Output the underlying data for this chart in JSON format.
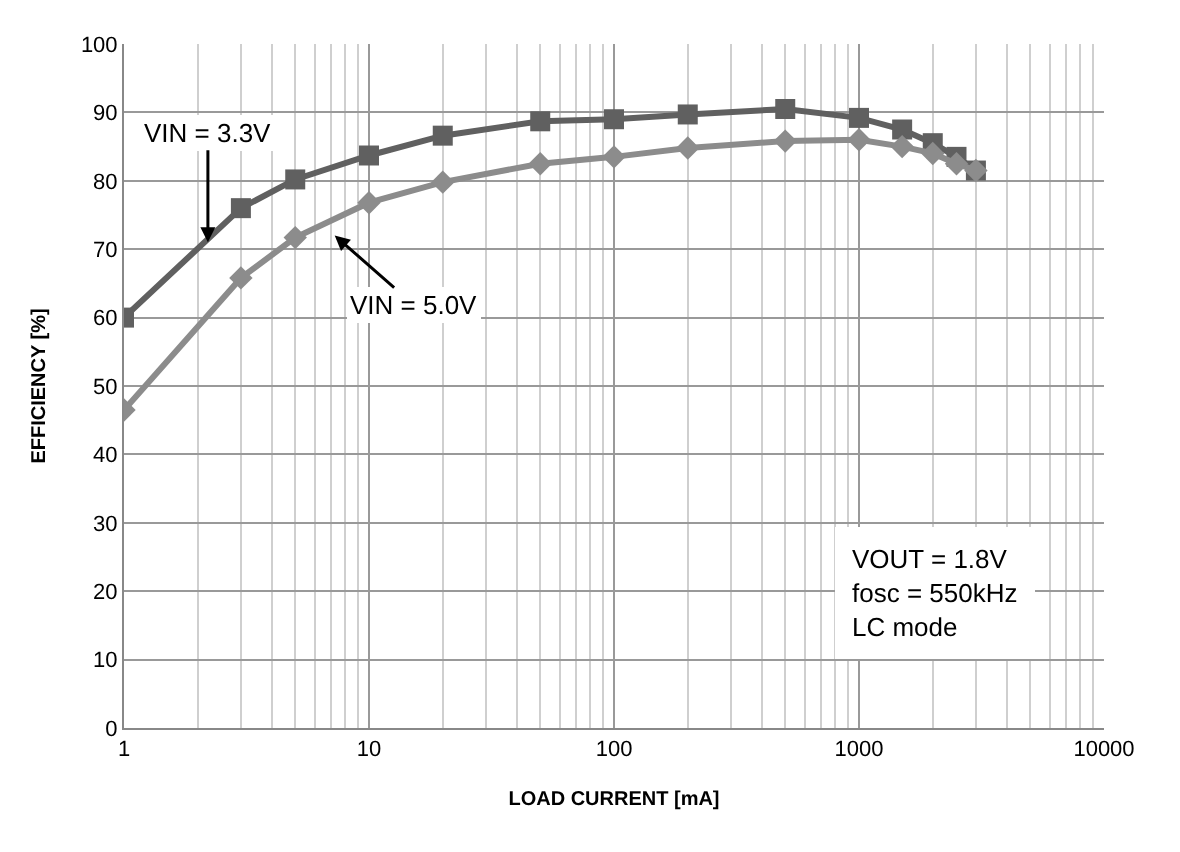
{
  "chart_data": {
    "type": "line",
    "xlabel": "LOAD CURRENT [mA]",
    "ylabel": "EFFICIENCY [%]",
    "x": [
      1,
      3,
      5,
      10,
      20,
      50,
      100,
      200,
      500,
      1000,
      1500,
      2000,
      2500,
      3000
    ],
    "series": [
      {
        "color": "#606060",
        "marker": "square",
        "values": [
          60,
          76,
          80.2,
          83.7,
          86.6,
          88.7,
          89,
          89.7,
          90.5,
          89.2,
          87.5,
          85.5,
          83.5,
          81.5
        ]
      },
      {
        "color": "#8c8c8c",
        "marker": "diamond",
        "values": [
          46.5,
          65.8,
          71.7,
          76.8,
          79.8,
          82.5,
          83.5,
          84.8,
          85.8,
          86,
          85,
          84,
          82.5,
          81.5
        ]
      }
    ],
    "annotations": [
      {
        "text": "VIN = 3.3V",
        "x": 2.2,
        "y": 71
      },
      "VIN = 5.0V",
      "VOUT = 1.8V\nfosc = 550kHz\nLC mode"
    ],
    "xlim": [
      1,
      10000
    ],
    "xticks": [
      1,
      10,
      100,
      1000,
      10000
    ],
    "ylim": [
      0,
      100
    ],
    "yticks": [
      0,
      10,
      20,
      30,
      40,
      50,
      60,
      70,
      80,
      90,
      100
    ],
    "log": "x",
    "grid": true,
    "line_style": "solid"
  }
}
